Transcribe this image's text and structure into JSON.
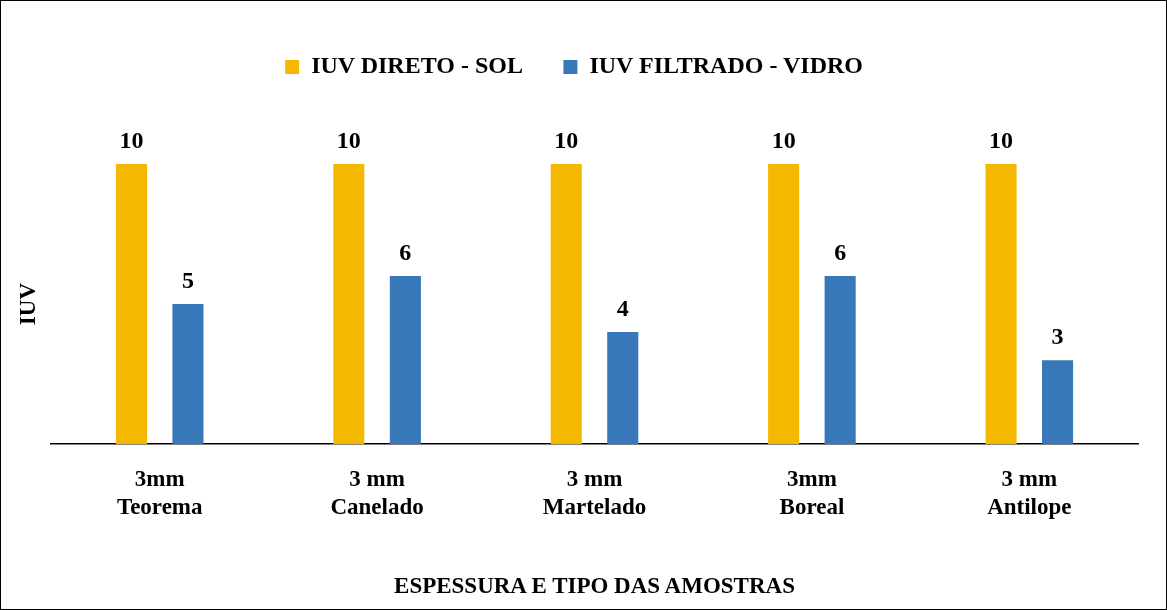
{
  "chart_data": {
    "type": "bar",
    "xlabel": "ESPESSURA E TIPO DAS AMOSTRAS",
    "ylabel": "IUV",
    "categories": [
      "3mm\nTeorema",
      "3 mm\nCanelado",
      "3 mm\nMartelado",
      "3mm\nBoreal",
      "3 mm\nAntilope"
    ],
    "series": [
      {
        "name": "IUV DIRETO - SOL",
        "color": "#f5b800",
        "values": [
          10,
          10,
          10,
          10,
          10
        ]
      },
      {
        "name": "IUV FILTRADO - VIDRO",
        "color": "#3878b8",
        "values": [
          5,
          6,
          4,
          6,
          3
        ]
      }
    ],
    "data_labels": true,
    "legend": "top",
    "grid": false
  }
}
